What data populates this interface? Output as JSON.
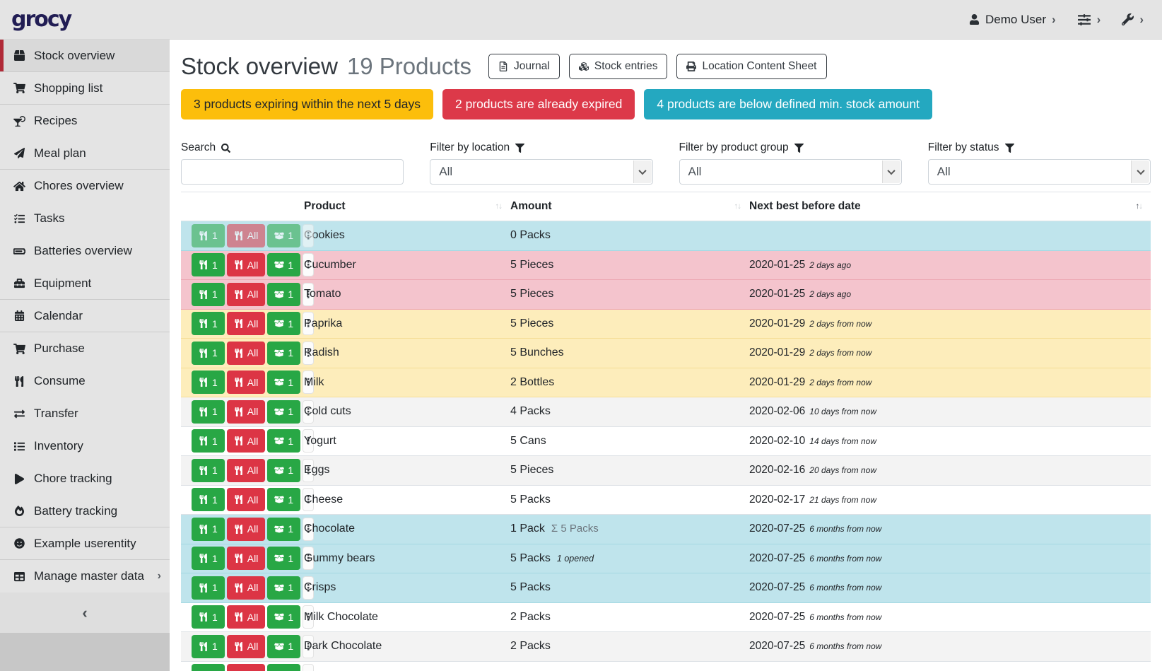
{
  "app": {
    "logo_text": "grocy"
  },
  "topbar": {
    "user_label": "Demo User",
    "chevron": "›"
  },
  "sidebar": {
    "collapse_glyph": "‹",
    "items": [
      {
        "label": "Stock overview",
        "icon": "box",
        "active": true,
        "divider_after": true
      },
      {
        "label": "Shopping list",
        "icon": "shopping-cart",
        "divider_after": true
      },
      {
        "label": "Recipes",
        "icon": "cocktail"
      },
      {
        "label": "Meal plan",
        "icon": "paper-plane",
        "divider_after": true
      },
      {
        "label": "Chores overview",
        "icon": "home"
      },
      {
        "label": "Tasks",
        "icon": "tasks"
      },
      {
        "label": "Batteries overview",
        "icon": "battery"
      },
      {
        "label": "Equipment",
        "icon": "toolbox",
        "divider_after": true
      },
      {
        "label": "Calendar",
        "icon": "calendar",
        "divider_after": true
      },
      {
        "label": "Purchase",
        "icon": "shopping-cart"
      },
      {
        "label": "Consume",
        "icon": "utensils"
      },
      {
        "label": "Transfer",
        "icon": "exchange"
      },
      {
        "label": "Inventory",
        "icon": "list"
      },
      {
        "label": "Chore tracking",
        "icon": "play"
      },
      {
        "label": "Battery tracking",
        "icon": "fire",
        "divider_after": true
      },
      {
        "label": "Example userentity",
        "icon": "smiley",
        "divider_after": true
      },
      {
        "label": "Manage master data",
        "icon": "table",
        "has_chevron": true
      }
    ]
  },
  "header": {
    "title": "Stock overview",
    "subtitle": "19 Products",
    "buttons": [
      {
        "name": "journal-button",
        "label": "Journal",
        "icon": "file"
      },
      {
        "name": "stock-entries-button",
        "label": "Stock entries",
        "icon": "cubes"
      },
      {
        "name": "location-content-sheet-button",
        "label": "Location Content Sheet",
        "icon": "print"
      }
    ]
  },
  "banners": [
    {
      "name": "expiring-banner",
      "text": "3 products expiring within the next 5 days",
      "bg": "#fcbe0b",
      "fg": "#212529"
    },
    {
      "name": "expired-banner",
      "text": "2 products are already expired",
      "bg": "#dc3949",
      "fg": "#ffffff"
    },
    {
      "name": "below-min-banner",
      "text": "4 products are below defined min. stock amount",
      "bg": "#24a8c0",
      "fg": "#ffffff"
    }
  ],
  "filters": {
    "search_label": "Search",
    "search_value": "",
    "selects": [
      {
        "name": "location-filter",
        "label": "Filter by location",
        "value": "All"
      },
      {
        "name": "product-group-filter",
        "label": "Filter by product group",
        "value": "All"
      },
      {
        "name": "status-filter",
        "label": "Filter by status",
        "value": "All"
      }
    ]
  },
  "table": {
    "columns": [
      {
        "label": "Product",
        "sorted": false
      },
      {
        "label": "Amount",
        "sorted": false
      },
      {
        "label": "Next best before date",
        "sorted": true
      }
    ],
    "row_buttons": {
      "consume_one": "1",
      "consume_all": "All",
      "open_one": "1",
      "menu_glyph": "⋮"
    },
    "rows": [
      {
        "product": "Cookies",
        "amount": "0 Packs",
        "sum": "",
        "note": "",
        "date": "",
        "date_note": "",
        "status": "below-min",
        "muted": true
      },
      {
        "product": "Cucumber",
        "amount": "5 Pieces",
        "sum": "",
        "note": "",
        "date": "2020-01-25",
        "date_note": "2 days ago",
        "status": "expired",
        "muted": false
      },
      {
        "product": "Tomato",
        "amount": "5 Pieces",
        "sum": "",
        "note": "",
        "date": "2020-01-25",
        "date_note": "2 days ago",
        "status": "expired",
        "muted": false
      },
      {
        "product": "Paprika",
        "amount": "5 Pieces",
        "sum": "",
        "note": "",
        "date": "2020-01-29",
        "date_note": "2 days from now",
        "status": "expiring",
        "muted": false
      },
      {
        "product": "Radish",
        "amount": "5 Bunches",
        "sum": "",
        "note": "",
        "date": "2020-01-29",
        "date_note": "2 days from now",
        "status": "expiring",
        "muted": false
      },
      {
        "product": "Milk",
        "amount": "2 Bottles",
        "sum": "",
        "note": "",
        "date": "2020-01-29",
        "date_note": "2 days from now",
        "status": "expiring",
        "muted": false
      },
      {
        "product": "Cold cuts",
        "amount": "4 Packs",
        "sum": "",
        "note": "",
        "date": "2020-02-06",
        "date_note": "10 days from now",
        "status": "",
        "muted": false
      },
      {
        "product": "Yogurt",
        "amount": "5 Cans",
        "sum": "",
        "note": "",
        "date": "2020-02-10",
        "date_note": "14 days from now",
        "status": "",
        "muted": false
      },
      {
        "product": "Eggs",
        "amount": "5 Pieces",
        "sum": "",
        "note": "",
        "date": "2020-02-16",
        "date_note": "20 days from now",
        "status": "",
        "muted": false
      },
      {
        "product": "Cheese",
        "amount": "5 Packs",
        "sum": "",
        "note": "",
        "date": "2020-02-17",
        "date_note": "21 days from now",
        "status": "",
        "muted": false
      },
      {
        "product": "Chocolate",
        "amount": "1 Pack",
        "sum": "5 Packs",
        "note": "",
        "date": "2020-07-25",
        "date_note": "6 months from now",
        "status": "below-min",
        "muted": false
      },
      {
        "product": "Gummy bears",
        "amount": "5 Packs",
        "sum": "",
        "note": "1 opened",
        "date": "2020-07-25",
        "date_note": "6 months from now",
        "status": "below-min",
        "muted": false
      },
      {
        "product": "Crisps",
        "amount": "5 Packs",
        "sum": "",
        "note": "",
        "date": "2020-07-25",
        "date_note": "6 months from now",
        "status": "below-min",
        "muted": false
      },
      {
        "product": "Milk Chocolate",
        "amount": "2 Packs",
        "sum": "",
        "note": "",
        "date": "2020-07-25",
        "date_note": "6 months from now",
        "status": "",
        "muted": false
      },
      {
        "product": "Dark Chocolate",
        "amount": "2 Packs",
        "sum": "",
        "note": "",
        "date": "2020-07-25",
        "date_note": "6 months from now",
        "status": "",
        "muted": false
      },
      {
        "product": "",
        "amount": "",
        "sum": "",
        "note": "",
        "date": "",
        "date_note": "",
        "status": "",
        "muted": false
      }
    ]
  }
}
